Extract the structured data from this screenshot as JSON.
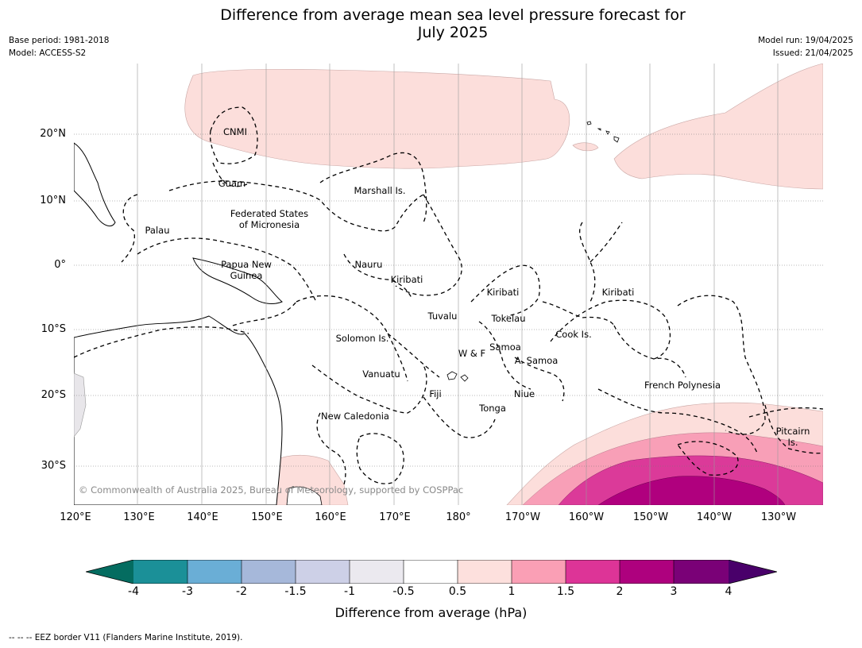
{
  "title": {
    "line1": "Difference from average mean sea level pressure forecast for",
    "line2": "July 2025"
  },
  "meta": {
    "base_period": "Base period: 1981-2018",
    "model": "Model: ACCESS-S2",
    "model_run": "Model run: 19/04/2025",
    "issued": "Issued: 21/04/2025"
  },
  "axes": {
    "latitudes": [
      "20°N",
      "10°N",
      "0°",
      "10°S",
      "20°S",
      "30°S"
    ],
    "longitudes": [
      "120°E",
      "130°E",
      "140°E",
      "150°E",
      "160°E",
      "170°E",
      "180°",
      "170°W",
      "160°W",
      "150°W",
      "140°W",
      "130°W"
    ]
  },
  "places": {
    "cnmi": "CNMI",
    "guam": "Guam",
    "marshall": "Marshall Is.",
    "palau": "Palau",
    "fsm_1": "Federated States",
    "fsm_2": "of Micronesia",
    "png_1": "Papua New",
    "png_2": "Guinea",
    "nauru": "Nauru",
    "kiribati_w": "Kiribati",
    "kiribati_c": "Kiribati",
    "kiribati_e": "Kiribati",
    "tuvalu": "Tuvalu",
    "tokelau": "Tokelau",
    "solomon": "Solomon Is.",
    "wf": "W & F",
    "samoa": "Samoa",
    "asamoa": "A. Samoa",
    "cook": "Cook Is.",
    "vanuatu": "Vanuatu",
    "fiji": "Fiji",
    "niue": "Niue",
    "tonga": "Tonga",
    "frpoly": "French Polynesia",
    "newcal": "New Caledonia",
    "pitcairn_1": "Pitcairn",
    "pitcairn_2": "Is."
  },
  "credit": "© Commonwealth of Australia 2025, Bureau of Meteorology, supported by COSPPac",
  "colorbar": {
    "title": "Difference from average (hPa)",
    "ticks": [
      "-4",
      "-3",
      "-2",
      "-1.5",
      "-1",
      "-0.5",
      "0.5",
      "1",
      "1.5",
      "2",
      "3",
      "4"
    ],
    "colors": [
      "#1b9098",
      "#6aaed6",
      "#a6b8da",
      "#cdd0e7",
      "#ebe9ef",
      "#ffffff",
      "#fde0dd",
      "#fa9fb5",
      "#dd3497",
      "#ae017e",
      "#7a0177"
    ],
    "under_color": "#046c60",
    "over_color": "#49006a"
  },
  "colors": {
    "anom_05_1": "#fcdedb",
    "anom_1_15": "#f89fb7",
    "anom_15_2": "#db3a99",
    "anom_2_3": "#b0007e",
    "land_fill": "#e8e6ea",
    "grid": "#999999"
  },
  "footnote": "--  --  -- EEZ border V11 (Flanders Marine Institute, 2019)."
}
